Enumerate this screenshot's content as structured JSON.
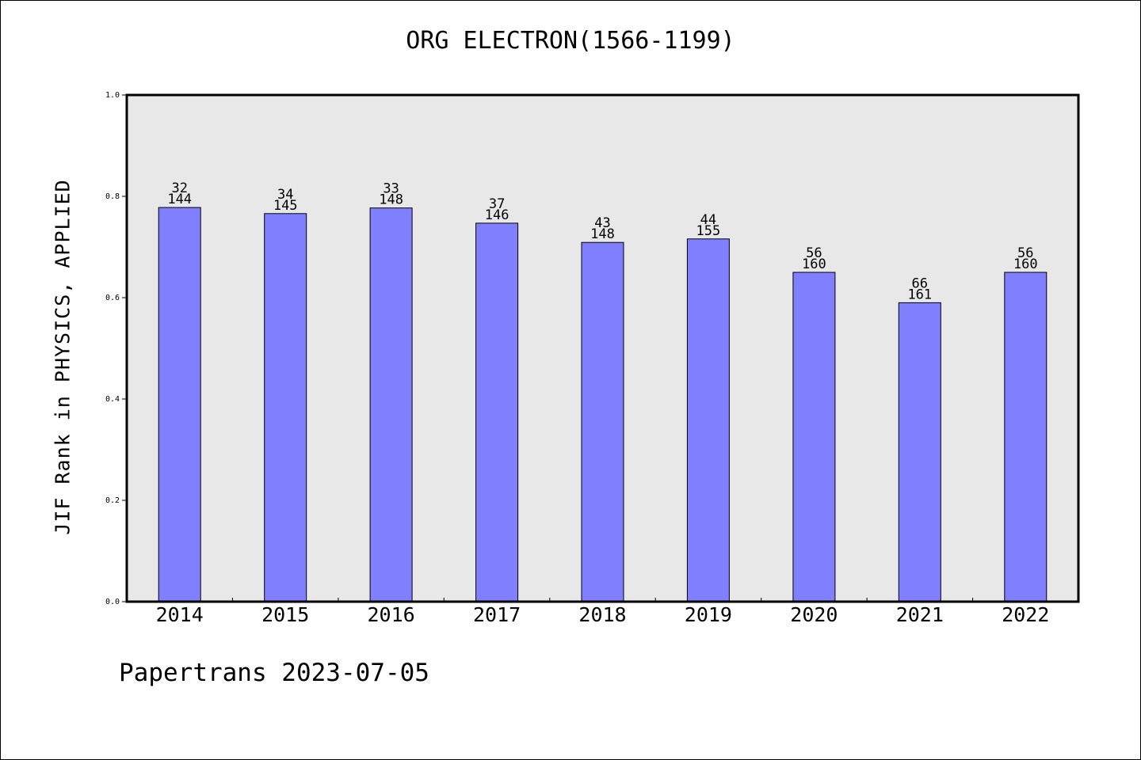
{
  "chart_data": {
    "type": "bar",
    "title": "ORG ELECTRON(1566-1199)",
    "xlabel": "",
    "ylabel": "JIF Rank in PHYSICS, APPLIED",
    "ylim": [
      0.0,
      1.0
    ],
    "yticks": [
      "0.0",
      "0.2",
      "0.4",
      "0.6",
      "0.8",
      "1.0"
    ],
    "categories": [
      "2014",
      "2015",
      "2016",
      "2017",
      "2018",
      "2019",
      "2020",
      "2021",
      "2022"
    ],
    "values": [
      0.778,
      0.766,
      0.777,
      0.747,
      0.709,
      0.716,
      0.65,
      0.59,
      0.65
    ],
    "bar_labels": [
      {
        "rank": "32",
        "total": "144"
      },
      {
        "rank": "34",
        "total": "145"
      },
      {
        "rank": "33",
        "total": "148"
      },
      {
        "rank": "37",
        "total": "146"
      },
      {
        "rank": "43",
        "total": "148"
      },
      {
        "rank": "44",
        "total": "155"
      },
      {
        "rank": "56",
        "total": "160"
      },
      {
        "rank": "66",
        "total": "161"
      },
      {
        "rank": "56",
        "total": "160"
      }
    ],
    "bar_color": "#8080ff",
    "plot_background": "#e8e8e8",
    "grid": false,
    "legend": "none"
  },
  "footer": "Papertrans 2023-07-05"
}
